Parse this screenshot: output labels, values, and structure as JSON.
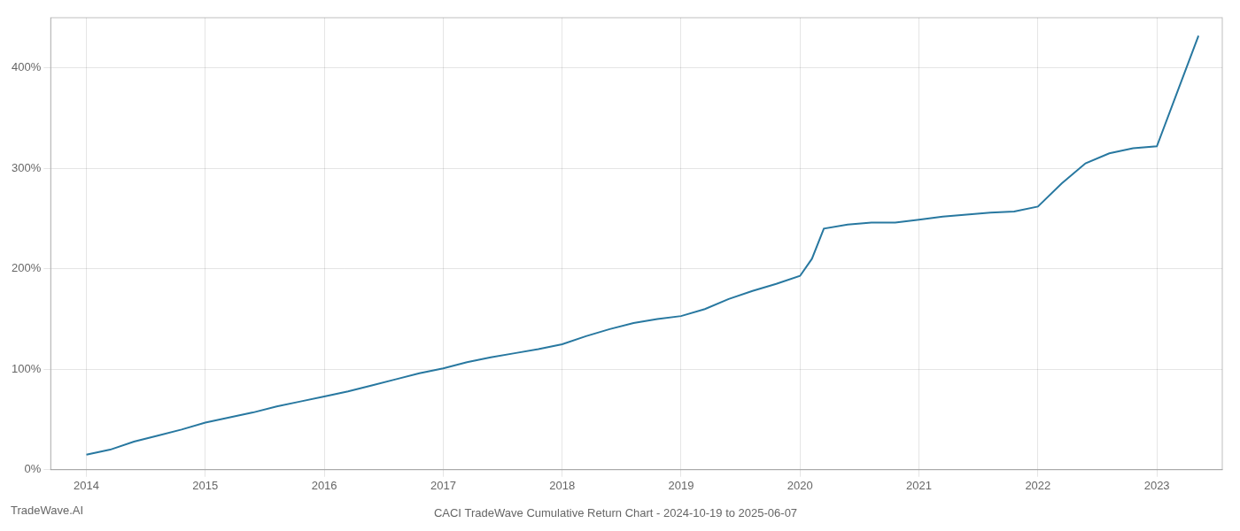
{
  "chart_data": {
    "type": "line",
    "title": "CACI TradeWave Cumulative Return Chart - 2024-10-19 to 2025-06-07",
    "annotations": [
      "TradeWave.AI"
    ],
    "x": [
      2014.0,
      2014.2,
      2014.4,
      2014.6,
      2014.8,
      2015.0,
      2015.2,
      2015.4,
      2015.6,
      2015.8,
      2016.0,
      2016.2,
      2016.4,
      2016.6,
      2016.8,
      2017.0,
      2017.2,
      2017.4,
      2017.6,
      2017.8,
      2018.0,
      2018.2,
      2018.4,
      2018.6,
      2018.8,
      2019.0,
      2019.2,
      2019.4,
      2019.6,
      2019.8,
      2020.0,
      2020.1,
      2020.2,
      2020.4,
      2020.6,
      2020.8,
      2021.0,
      2021.2,
      2021.4,
      2021.6,
      2021.8,
      2022.0,
      2022.2,
      2022.4,
      2022.6,
      2022.8,
      2023.0,
      2023.2,
      2023.35
    ],
    "values": [
      15,
      20,
      28,
      34,
      40,
      47,
      52,
      57,
      63,
      68,
      73,
      78,
      84,
      90,
      96,
      101,
      107,
      112,
      116,
      120,
      125,
      133,
      140,
      146,
      150,
      153,
      160,
      170,
      178,
      185,
      193,
      210,
      240,
      244,
      246,
      246,
      249,
      252,
      254,
      256,
      257,
      262,
      285,
      305,
      315,
      320,
      322,
      385,
      432
    ],
    "color": "#2878a0",
    "xlim": [
      2013.7,
      2023.55
    ],
    "xticks": [
      2014,
      2015,
      2016,
      2017,
      2018,
      2019,
      2020,
      2021,
      2022,
      2023
    ],
    "ylim": [
      0,
      450
    ],
    "yticks": [
      {
        "value": 0,
        "label": "0%"
      },
      {
        "value": 100,
        "label": "100%"
      },
      {
        "value": 200,
        "label": "200%"
      },
      {
        "value": 300,
        "label": "300%"
      },
      {
        "value": 400,
        "label": "400%"
      }
    ],
    "grid": true
  }
}
